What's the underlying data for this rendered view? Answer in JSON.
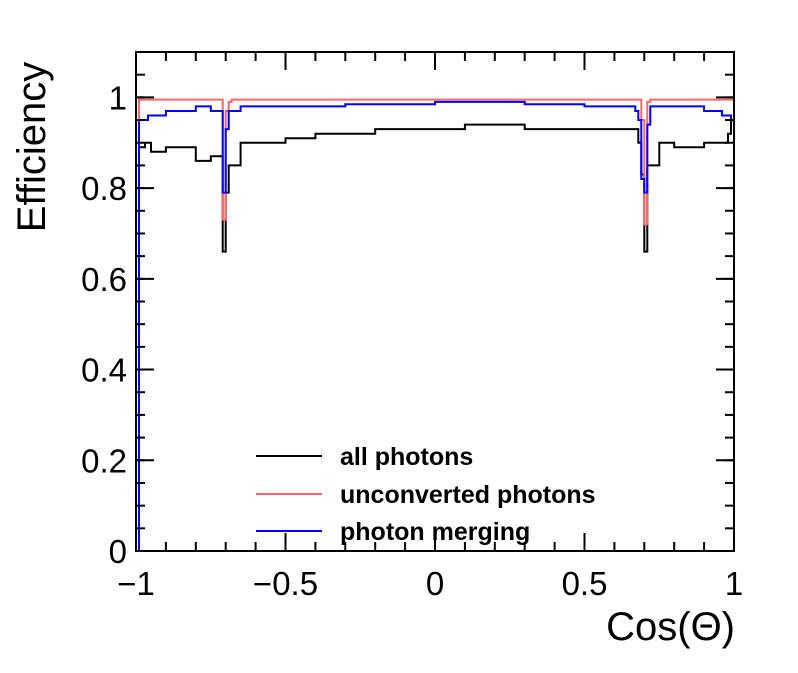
{
  "chart_data": {
    "type": "line",
    "step": true,
    "title": "",
    "xlabel": "Cos(Θ)",
    "ylabel": "Efficiency",
    "xlim": [
      -1,
      1
    ],
    "ylim": [
      0,
      1.1
    ],
    "x_ticks": [
      {
        "value": -1,
        "label": "−1"
      },
      {
        "value": -0.5,
        "label": "−0.5"
      },
      {
        "value": 0,
        "label": "0"
      },
      {
        "value": 0.5,
        "label": "0.5"
      },
      {
        "value": 1,
        "label": "1"
      }
    ],
    "y_ticks": [
      {
        "value": 0,
        "label": "0"
      },
      {
        "value": 0.2,
        "label": "0.2"
      },
      {
        "value": 0.4,
        "label": "0.4"
      },
      {
        "value": 0.6,
        "label": "0.6"
      },
      {
        "value": 0.8,
        "label": "0.8"
      },
      {
        "value": 1,
        "label": "1"
      }
    ],
    "grid": false,
    "legend_position": "bottom-center",
    "series": [
      {
        "name": "all photons",
        "color": "#000000",
        "points": [
          [
            -1.0,
            0.0
          ],
          [
            -0.99,
            0.89
          ],
          [
            -0.97,
            0.9
          ],
          [
            -0.95,
            0.88
          ],
          [
            -0.9,
            0.89
          ],
          [
            -0.85,
            0.89
          ],
          [
            -0.8,
            0.86
          ],
          [
            -0.75,
            0.87
          ],
          [
            -0.72,
            0.87
          ],
          [
            -0.71,
            0.66
          ],
          [
            -0.7,
            0.79
          ],
          [
            -0.69,
            0.85
          ],
          [
            -0.65,
            0.9
          ],
          [
            -0.6,
            0.9
          ],
          [
            -0.5,
            0.91
          ],
          [
            -0.4,
            0.92
          ],
          [
            -0.3,
            0.92
          ],
          [
            -0.2,
            0.93
          ],
          [
            -0.1,
            0.93
          ],
          [
            0.0,
            0.93
          ],
          [
            0.1,
            0.94
          ],
          [
            0.2,
            0.94
          ],
          [
            0.3,
            0.93
          ],
          [
            0.4,
            0.93
          ],
          [
            0.5,
            0.93
          ],
          [
            0.6,
            0.93
          ],
          [
            0.68,
            0.9
          ],
          [
            0.69,
            0.83
          ],
          [
            0.7,
            0.66
          ],
          [
            0.71,
            0.85
          ],
          [
            0.75,
            0.9
          ],
          [
            0.8,
            0.89
          ],
          [
            0.85,
            0.89
          ],
          [
            0.9,
            0.9
          ],
          [
            0.95,
            0.9
          ],
          [
            0.98,
            0.92
          ],
          [
            0.99,
            0.95
          ],
          [
            1.0,
            0.0
          ]
        ]
      },
      {
        "name": "unconverted photons",
        "color": "#ff6666",
        "points": [
          [
            -1.0,
            0.0
          ],
          [
            -0.99,
            0.995
          ],
          [
            -0.72,
            0.995
          ],
          [
            -0.71,
            0.73
          ],
          [
            -0.7,
            0.97
          ],
          [
            -0.69,
            0.99
          ],
          [
            -0.68,
            0.995
          ],
          [
            0.68,
            0.995
          ],
          [
            0.69,
            0.95
          ],
          [
            0.7,
            0.72
          ],
          [
            0.71,
            0.99
          ],
          [
            0.72,
            0.995
          ],
          [
            0.99,
            0.995
          ],
          [
            1.0,
            0.0
          ]
        ]
      },
      {
        "name": "photon merging",
        "color": "#0000ff",
        "points": [
          [
            -1.0,
            0.0
          ],
          [
            -0.99,
            0.95
          ],
          [
            -0.96,
            0.96
          ],
          [
            -0.9,
            0.97
          ],
          [
            -0.8,
            0.98
          ],
          [
            -0.75,
            0.97
          ],
          [
            -0.72,
            0.97
          ],
          [
            -0.71,
            0.79
          ],
          [
            -0.7,
            0.93
          ],
          [
            -0.69,
            0.97
          ],
          [
            -0.65,
            0.98
          ],
          [
            -0.5,
            0.98
          ],
          [
            -0.3,
            0.985
          ],
          [
            0.0,
            0.99
          ],
          [
            0.3,
            0.985
          ],
          [
            0.5,
            0.98
          ],
          [
            0.6,
            0.98
          ],
          [
            0.67,
            0.97
          ],
          [
            0.68,
            0.95
          ],
          [
            0.69,
            0.82
          ],
          [
            0.7,
            0.79
          ],
          [
            0.71,
            0.94
          ],
          [
            0.72,
            0.98
          ],
          [
            0.8,
            0.98
          ],
          [
            0.9,
            0.97
          ],
          [
            0.96,
            0.96
          ],
          [
            0.99,
            0.95
          ],
          [
            1.0,
            0.0
          ]
        ]
      }
    ]
  }
}
